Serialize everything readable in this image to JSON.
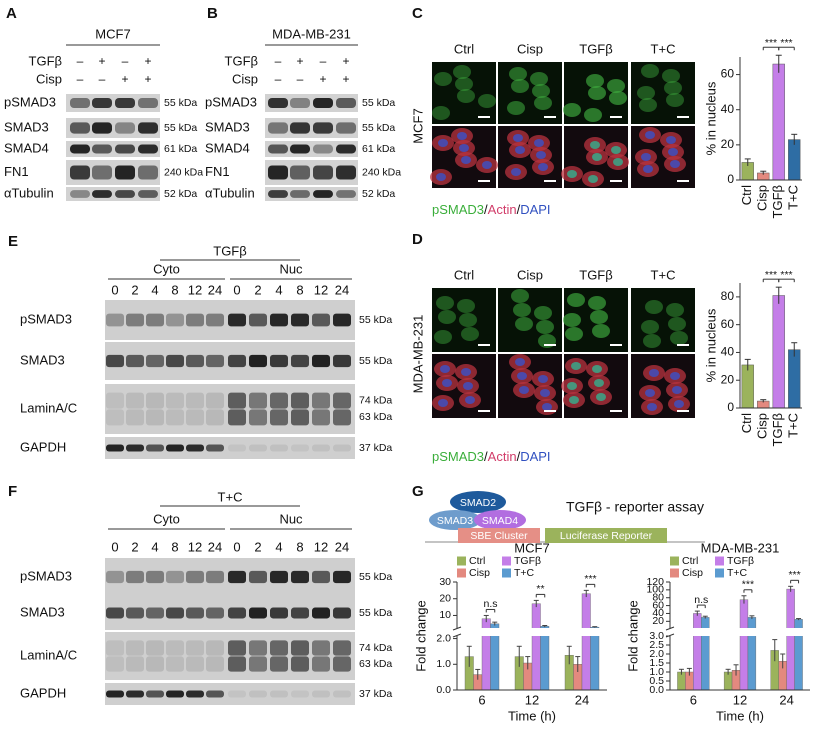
{
  "panels": {
    "A": {
      "label": "A",
      "cell_line": "MCF7",
      "treatments": [
        {
          "name": "TGFβ",
          "signs": [
            "–",
            "+",
            "–",
            "+"
          ]
        },
        {
          "name": "Cisp",
          "signs": [
            "–",
            "–",
            "+",
            "+"
          ]
        }
      ],
      "blots": [
        {
          "protein": "pSMAD3",
          "sizes": [
            "55 kDa"
          ]
        },
        {
          "protein": "SMAD3",
          "sizes": [
            "55 kDa"
          ]
        },
        {
          "protein": "SMAD4",
          "sizes": [
            "61 kDa"
          ]
        },
        {
          "protein": "FN1",
          "sizes": [
            "240 kDa"
          ]
        },
        {
          "protein": "αTubulin",
          "sizes": [
            "52 kDa"
          ]
        }
      ]
    },
    "B": {
      "label": "B",
      "cell_line": "MDA-MB-231",
      "treatments": [
        {
          "name": "TGFβ",
          "signs": [
            "–",
            "+",
            "–",
            "+"
          ]
        },
        {
          "name": "Cisp",
          "signs": [
            "–",
            "–",
            "+",
            "+"
          ]
        }
      ],
      "blots": [
        {
          "protein": "pSMAD3",
          "sizes": [
            "55 kDa"
          ]
        },
        {
          "protein": "SMAD3",
          "sizes": [
            "55 kDa"
          ]
        },
        {
          "protein": "SMAD4",
          "sizes": [
            "61 kDa"
          ]
        },
        {
          "protein": "FN1",
          "sizes": [
            "240 kDa"
          ]
        },
        {
          "protein": "αTubulin",
          "sizes": [
            "52 kDa"
          ]
        }
      ]
    },
    "C": {
      "label": "C",
      "cell_line": "MCF7",
      "conditions": [
        "Ctrl",
        "Cisp",
        "TGFβ",
        "T+C"
      ],
      "stains": [
        "pSMAD3",
        "Actin",
        "DAPI"
      ],
      "separator": "/"
    },
    "D": {
      "label": "D",
      "cell_line": "MDA-MB-231",
      "conditions": [
        "Ctrl",
        "Cisp",
        "TGFβ",
        "T+C"
      ],
      "stains": [
        "pSMAD3",
        "Actin",
        "DAPI"
      ],
      "separator": "/"
    },
    "E": {
      "label": "E",
      "header": "TGFβ",
      "fractions": [
        "Cyto",
        "Nuc"
      ],
      "times": [
        "0",
        "2",
        "4",
        "8",
        "12",
        "24"
      ],
      "blots": [
        {
          "protein": "pSMAD3",
          "sizes": [
            "55 kDa"
          ]
        },
        {
          "protein": "SMAD3",
          "sizes": [
            "55 kDa"
          ]
        },
        {
          "protein": "LaminA/C",
          "sizes": [
            "74 kDa",
            "63 kDa"
          ]
        },
        {
          "protein": "GAPDH",
          "sizes": [
            "37 kDa"
          ]
        }
      ]
    },
    "F": {
      "label": "F",
      "header": "T+C",
      "fractions": [
        "Cyto",
        "Nuc"
      ],
      "times": [
        "0",
        "2",
        "4",
        "8",
        "12",
        "24"
      ],
      "blots": [
        {
          "protein": "pSMAD3",
          "sizes": [
            "55 kDa"
          ]
        },
        {
          "protein": "SMAD3",
          "sizes": [
            "55 kDa"
          ]
        },
        {
          "protein": "LaminA/C",
          "sizes": [
            "74 kDa",
            "63 kDa"
          ]
        },
        {
          "protein": "GAPDH",
          "sizes": [
            "37 kDa"
          ]
        }
      ]
    },
    "G": {
      "label": "G",
      "title": "TGFβ - reporter assay",
      "proteins": [
        "SMAD2",
        "SMAD3",
        "SMAD4"
      ],
      "elements": [
        "SBE Cluster",
        "Luciferase Reporter"
      ]
    }
  },
  "chart_data": [
    {
      "type": "bar",
      "ylabel": "% in nucleus",
      "categories": [
        "Ctrl",
        "Cisp",
        "TGFβ",
        "T+C"
      ],
      "values": [
        10,
        4,
        66,
        23
      ],
      "errors": [
        2,
        1,
        5,
        3
      ],
      "colors": [
        "#9bb35c",
        "#e3897f",
        "#c47ee8",
        "#2e6da4"
      ],
      "ylim": [
        0,
        70
      ],
      "yticks": [
        0,
        20,
        40,
        60
      ],
      "significance": [
        "***",
        "***"
      ]
    },
    {
      "type": "bar",
      "ylabel": "% in nucleus",
      "categories": [
        "Ctrl",
        "Cisp",
        "TGFβ",
        "T+C"
      ],
      "values": [
        31,
        5,
        81,
        42
      ],
      "errors": [
        4,
        1,
        6,
        5
      ],
      "colors": [
        "#9bb35c",
        "#e3897f",
        "#c47ee8",
        "#2e6da4"
      ],
      "ylim": [
        0,
        90
      ],
      "yticks": [
        0,
        20,
        40,
        60,
        80
      ],
      "significance": [
        "***",
        "***"
      ]
    },
    {
      "type": "broken_bar",
      "title": "MCF7",
      "xlabel": "Time (h)",
      "ylabel": "Fold change",
      "categories": [
        "6",
        "12",
        "24"
      ],
      "series": [
        {
          "name": "Ctrl",
          "color": "#9bb35c",
          "values": [
            1.3,
            1.3,
            1.35
          ],
          "errors": [
            0.4,
            0.4,
            0.35
          ]
        },
        {
          "name": "Cisp",
          "color": "#e3897f",
          "values": [
            0.6,
            1.05,
            1.0
          ],
          "errors": [
            0.2,
            0.25,
            0.3
          ]
        },
        {
          "name": "TGFβ",
          "color": "#c47ee8",
          "values": [
            8,
            17,
            23
          ],
          "errors": [
            2,
            2,
            2
          ]
        },
        {
          "name": "T+C",
          "color": "#5b9bd0",
          "values": [
            5,
            3.5,
            3
          ],
          "errors": [
            1,
            0.5,
            0.3
          ]
        }
      ],
      "ylim_lower": [
        0,
        2.1
      ],
      "yticks_lower": [
        {
          "value": 0,
          "label": "0.0"
        },
        {
          "value": 1,
          "label": "1.0"
        },
        {
          "value": 2,
          "label": "2.0"
        }
      ],
      "ylim_upper": [
        2.5,
        30
      ],
      "yticks_upper": [
        10,
        20,
        30
      ],
      "significance": [
        "n.s",
        "**",
        "***"
      ]
    },
    {
      "type": "broken_bar",
      "title": "MDA-MB-231",
      "xlabel": "Time (h)",
      "ylabel": "Fold change",
      "categories": [
        "6",
        "12",
        "24"
      ],
      "series": [
        {
          "name": "Ctrl",
          "color": "#9bb35c",
          "values": [
            1.0,
            1.0,
            2.2
          ],
          "errors": [
            0.15,
            0.15,
            0.6
          ]
        },
        {
          "name": "Cisp",
          "color": "#e3897f",
          "values": [
            1.0,
            1.1,
            1.6
          ],
          "errors": [
            0.2,
            0.3,
            0.4
          ]
        },
        {
          "name": "TGFβ",
          "color": "#c47ee8",
          "values": [
            40,
            75,
            102
          ],
          "errors": [
            6,
            10,
            7
          ]
        },
        {
          "name": "T+C",
          "color": "#5b9bd0",
          "values": [
            30,
            30,
            25
          ],
          "errors": [
            3,
            4,
            2
          ]
        }
      ],
      "ylim_lower": [
        0,
        3
      ],
      "yticks_lower": [
        {
          "value": 0,
          "label": "0.0"
        },
        {
          "value": 0.5,
          "label": "0.5"
        },
        {
          "value": 1,
          "label": "1.0"
        },
        {
          "value": 1.5,
          "label": "1.5"
        },
        {
          "value": 2,
          "label": "2.0"
        },
        {
          "value": 2.5,
          "label": "2.5"
        },
        {
          "value": 3,
          "label": "3.0"
        }
      ],
      "ylim_upper": [
        3,
        120
      ],
      "yticks_upper": [
        20,
        40,
        60,
        80,
        100,
        120
      ],
      "significance": [
        "n.s",
        "***",
        "***"
      ]
    }
  ]
}
